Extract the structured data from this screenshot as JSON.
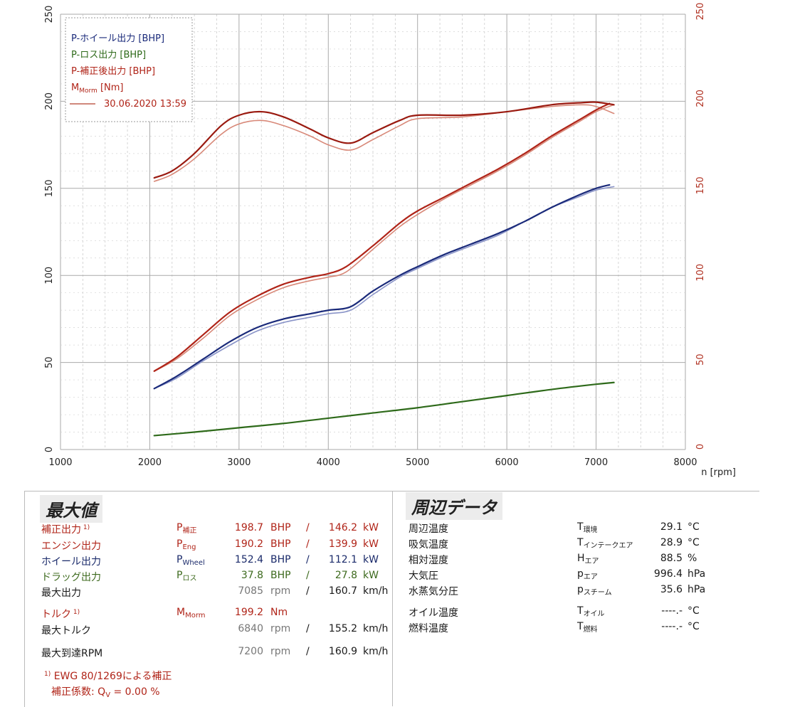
{
  "chart_data": {
    "type": "line",
    "xlabel": "n [rpm]",
    "xlim": [
      1000,
      8000
    ],
    "x_ticks": [
      "1000",
      "2000",
      "3000",
      "4000",
      "5000",
      "6000",
      "7000",
      "8000"
    ],
    "ylim": [
      0,
      250
    ],
    "y_ticks": [
      "0",
      "50",
      "100",
      "150",
      "200",
      "250"
    ],
    "y2_ticks": [
      "0",
      "50",
      "100",
      "150",
      "200",
      "250"
    ],
    "grid": true,
    "legend": {
      "position": "top-left",
      "entries": [
        {
          "label": "P-ホイール出力 [BHP]",
          "color": "#1a2a7a"
        },
        {
          "label": "P-ロス出力 [BHP]",
          "color": "#2e6a1a"
        },
        {
          "label": "P-補正後出力 [BHP]",
          "color": "#b02418"
        },
        {
          "label": "M",
          "sub": "Morm",
          "tail": " [Nm]",
          "color": "#b02418"
        },
        {
          "label": "30.06.2020 13:59",
          "color": "#c06050"
        }
      ]
    },
    "series": [
      {
        "name": "P-ホイール出力 [BHP]",
        "color": "#1a2a7a",
        "x": [
          2050,
          2300,
          2600,
          2900,
          3200,
          3500,
          3800,
          4000,
          4250,
          4500,
          4800,
          5000,
          5300,
          5600,
          5900,
          6200,
          6500,
          6800,
          7000,
          7150
        ],
        "y": [
          35,
          42,
          52,
          62,
          70,
          75,
          78,
          80,
          82,
          91,
          100,
          105,
          112,
          118,
          124,
          131,
          139,
          146,
          150,
          152
        ]
      },
      {
        "name": "P-ホイール出力 (2)",
        "color": "#8a94c8",
        "x": [
          2050,
          2300,
          2600,
          2900,
          3200,
          3500,
          3800,
          4000,
          4250,
          4500,
          4800,
          5000,
          5300,
          5600,
          5900,
          6200,
          6500,
          6800,
          7000,
          7200
        ],
        "y": [
          35,
          41,
          51,
          60,
          68,
          73,
          76,
          78,
          80,
          89,
          99,
          104,
          111,
          117,
          123,
          131,
          139,
          145,
          149,
          151
        ]
      },
      {
        "name": "P-ロス出力 [BHP]",
        "color": "#2e6a1a",
        "x": [
          2050,
          2500,
          3000,
          3500,
          4000,
          4500,
          5000,
          5500,
          6000,
          6500,
          7000,
          7200
        ],
        "y": [
          8,
          10,
          12.5,
          15,
          18,
          21,
          24,
          27.5,
          31,
          34.5,
          37.5,
          38.5
        ]
      },
      {
        "name": "P-補正後出力 [BHP]",
        "color": "#b02418",
        "x": [
          2050,
          2300,
          2600,
          2900,
          3200,
          3500,
          3800,
          4000,
          4200,
          4500,
          4800,
          5000,
          5300,
          5600,
          5900,
          6200,
          6500,
          6800,
          7000,
          7150
        ],
        "y": [
          45,
          53,
          66,
          79,
          88,
          95,
          99,
          101,
          105,
          117,
          130,
          137,
          145,
          153,
          161,
          170,
          180,
          189,
          195,
          198.7
        ]
      },
      {
        "name": "P-補正後出力 (2)",
        "color": "#d88878",
        "x": [
          2050,
          2300,
          2600,
          2900,
          3200,
          3500,
          3800,
          4000,
          4200,
          4500,
          4800,
          5000,
          5300,
          5600,
          5900,
          6200,
          6500,
          6800,
          7000,
          7200
        ],
        "y": [
          45,
          52,
          64,
          77,
          86,
          93,
          97,
          99,
          102,
          115,
          128,
          135,
          144,
          152,
          160,
          169,
          179,
          188,
          194,
          198
        ]
      },
      {
        "name": "M",
        "color": "#9a1a10",
        "x": [
          2050,
          2250,
          2500,
          2800,
          3000,
          3250,
          3500,
          3800,
          4000,
          4250,
          4500,
          4800,
          5000,
          5500,
          6000,
          6500,
          6840,
          7000,
          7200
        ],
        "y": [
          156,
          160,
          170,
          186,
          192,
          194,
          191,
          184,
          179,
          176,
          182,
          189,
          192,
          192,
          194,
          198,
          199.2,
          199.5,
          198
        ]
      },
      {
        "name": "M (2)",
        "color": "#d88878",
        "x": [
          2050,
          2250,
          2500,
          2800,
          3000,
          3250,
          3500,
          3800,
          4000,
          4250,
          4500,
          4800,
          5000,
          5500,
          6000,
          6500,
          6840,
          7000,
          7200
        ],
        "y": [
          154,
          158,
          167,
          181,
          187,
          189,
          186,
          180,
          175,
          172,
          178,
          186,
          190,
          191,
          194,
          197,
          198,
          197,
          193
        ]
      }
    ]
  },
  "max_panel": {
    "title": "最大値",
    "rows": [
      {
        "label": "補正出力",
        "mark": "1)",
        "sym": "P",
        "sub": "補正",
        "val1": "198.7",
        "unit1": "BHP",
        "slash": "/",
        "val2": "146.2",
        "unit2": "kW",
        "color": "red"
      },
      {
        "label": "エンジン出力",
        "sym": "P",
        "sub": "Eng",
        "val1": "190.2",
        "unit1": "BHP",
        "slash": "/",
        "val2": "139.9",
        "unit2": "kW",
        "color": "red"
      },
      {
        "label": "ホイール出力",
        "sym": "P",
        "sub": "Wheel",
        "val1": "152.4",
        "unit1": "BHP",
        "slash": "/",
        "val2": "112.1",
        "unit2": "kW",
        "color": "navy"
      },
      {
        "label": "ドラッグ出力",
        "sym": "P",
        "sub": "ロス",
        "val1": "37.8",
        "unit1": "BHP",
        "slash": "/",
        "val2": "27.8",
        "unit2": "kW",
        "color": "green"
      },
      {
        "label": "最大出力",
        "rpm": "7085",
        "rpm_unit": "rpm",
        "slash": "/",
        "speed": "160.7",
        "speed_unit": "km/h"
      },
      {
        "label": "トルク",
        "mark": "1)",
        "sym": "M",
        "sub": "Morm",
        "val1": "199.2",
        "unit1": "Nm",
        "color": "red"
      },
      {
        "label": "最大トルク",
        "rpm": "6840",
        "rpm_unit": "rpm",
        "slash": "/",
        "speed": "155.2",
        "speed_unit": "km/h"
      },
      {
        "label": "最大到達RPM",
        "rpm": "7200",
        "rpm_unit": "rpm",
        "slash": "/",
        "speed": "160.9",
        "speed_unit": "km/h"
      }
    ],
    "footnote1": "EWG 80/1269による補正",
    "footnote_mark": "1)",
    "footnote2_label": "補正係数:",
    "footnote2_sym": "Q",
    "footnote2_sub": "V",
    "footnote2_val": " =   0.00 %"
  },
  "env_panel": {
    "title": "周辺データ",
    "rows": [
      {
        "label": "周辺温度",
        "sym": "T",
        "sub": "環境",
        "val": "29.1",
        "unit": "°C"
      },
      {
        "label": "吸気温度",
        "sym": "T",
        "sub": "インテークエア",
        "val": "28.9",
        "unit": "°C"
      },
      {
        "label": "相対湿度",
        "sym": "H",
        "sub": "エア",
        "val": "88.5",
        "unit": "%"
      },
      {
        "label": "大気圧",
        "sym": "p",
        "sub": "エア",
        "val": "996.4",
        "unit": "hPa"
      },
      {
        "label": "水蒸気分圧",
        "sym": "p",
        "sub": "スチーム",
        "val": "35.6",
        "unit": "hPa"
      },
      {
        "label": "オイル温度",
        "sym": "T",
        "sub": "オイル",
        "val": "----.-",
        "unit": "°C"
      },
      {
        "label": "燃料温度",
        "sym": "T",
        "sub": "燃料",
        "val": "----.-",
        "unit": "°C"
      }
    ]
  }
}
